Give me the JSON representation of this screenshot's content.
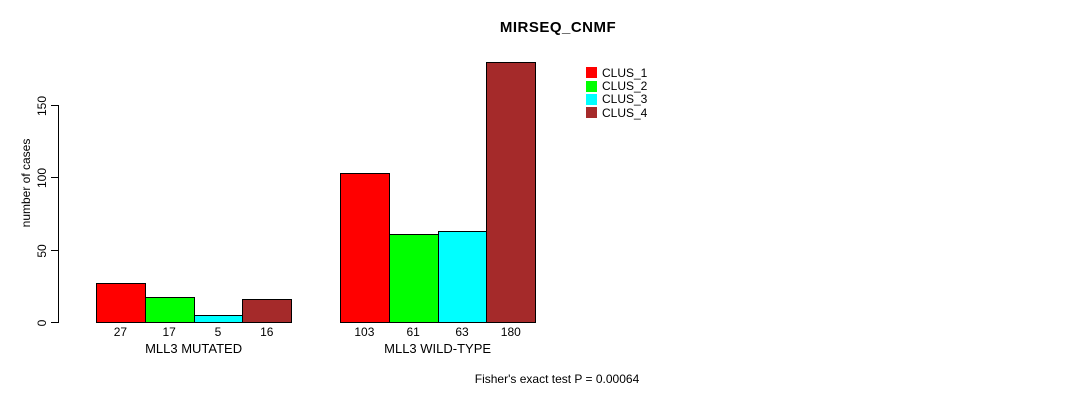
{
  "chart_data": {
    "type": "bar",
    "title": "MIRSEQ_CNMF",
    "ylabel": "number of cases",
    "xlabel": "",
    "categories": [
      "MLL3 MUTATED",
      "MLL3 WILD-TYPE"
    ],
    "series": [
      {
        "name": "CLUS_1",
        "color": "#FF0000",
        "values": [
          27,
          103
        ]
      },
      {
        "name": "CLUS_2",
        "color": "#00FF00",
        "values": [
          17,
          61
        ]
      },
      {
        "name": "CLUS_3",
        "color": "#00FFFF",
        "values": [
          5,
          63
        ]
      },
      {
        "name": "CLUS_4",
        "color": "#A52A2A",
        "values": [
          16,
          180
        ]
      }
    ],
    "bar_value_labels": [
      [
        "27",
        "17",
        "5",
        "16"
      ],
      [
        "103",
        "61",
        "63",
        "180"
      ]
    ],
    "yticks": [
      0,
      50,
      100,
      150
    ],
    "ylim": [
      0,
      180
    ],
    "grid": false,
    "legend_position": "top-right",
    "annotation": "Fisher's exact test P = 0.00064"
  },
  "colors": {
    "background": "#FFFFFF",
    "axis": "#000000",
    "text": "#000000"
  }
}
